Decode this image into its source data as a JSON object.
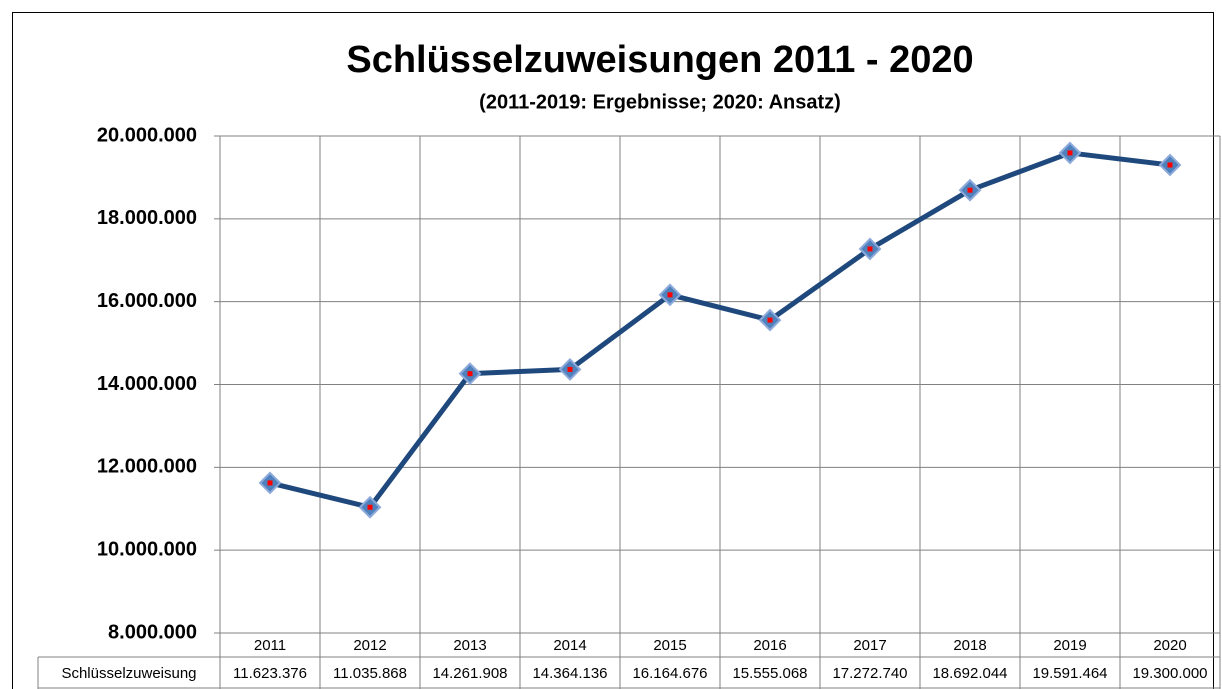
{
  "chart_data": {
    "type": "line",
    "title": "Schlüsselzuweisungen 2011 - 2020",
    "subtitle": "(2011-2019: Ergebnisse; 2020: Ansatz)",
    "categories": [
      "2011",
      "2012",
      "2013",
      "2014",
      "2015",
      "2016",
      "2017",
      "2018",
      "2019",
      "2020"
    ],
    "series": [
      {
        "name": "Schlüsselzuweisung",
        "color": "#1f497d",
        "marker_color": "#4f81bd",
        "values": [
          11623376,
          11035868,
          14261908,
          14364136,
          16164676,
          15555068,
          17272740,
          18692044,
          19591464,
          19300000
        ],
        "value_labels": [
          "11.623.376",
          "11.035.868",
          "14.261.908",
          "14.364.136",
          "16.164.676",
          "15.555.068",
          "17.272.740",
          "18.692.044",
          "19.591.464",
          "19.300.000"
        ]
      }
    ],
    "ylim": [
      8000000,
      20000000
    ],
    "yticks": [
      {
        "value": 8000000,
        "label": "8.000.000"
      },
      {
        "value": 10000000,
        "label": "10.000.000"
      },
      {
        "value": 12000000,
        "label": "12.000.000"
      },
      {
        "value": 14000000,
        "label": "14.000.000"
      },
      {
        "value": 16000000,
        "label": "16.000.000"
      },
      {
        "value": 18000000,
        "label": "18.000.000"
      },
      {
        "value": 20000000,
        "label": "20.000.000"
      }
    ],
    "grid": true
  }
}
